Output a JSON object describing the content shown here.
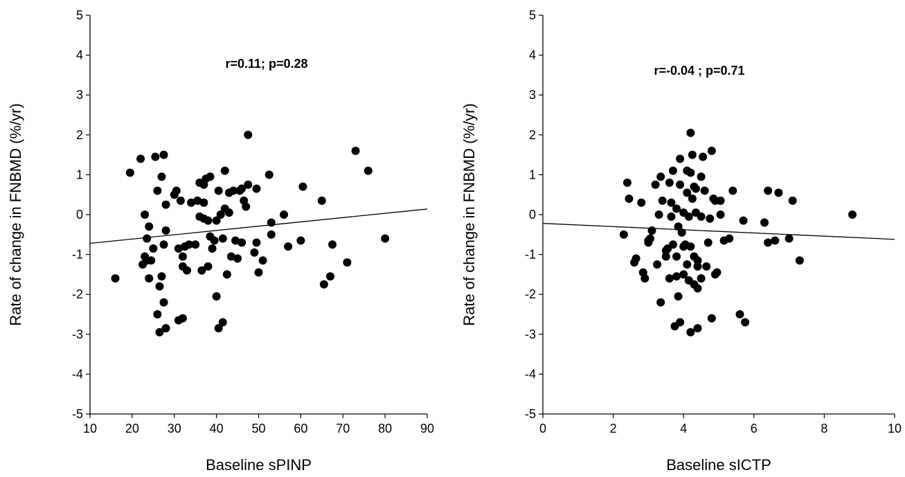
{
  "chart_data": [
    {
      "type": "scatter",
      "xlabel": "Baseline sPINP",
      "ylabel": "Rate of change in FNBMD (%/yr)",
      "annotation": "r=0.11; p=0.28",
      "xlim": [
        10,
        90
      ],
      "ylim": [
        -5,
        5
      ],
      "xticks": [
        "10",
        "20",
        "30",
        "40",
        "50",
        "60",
        "70",
        "80",
        "90"
      ],
      "yticks": [
        "-5",
        "-4",
        "-3",
        "-2",
        "-1",
        "0",
        "1",
        "2",
        "3",
        "4",
        "5"
      ],
      "regression": {
        "x": [
          10,
          90
        ],
        "y": [
          -0.72,
          0.14
        ]
      },
      "points": [
        [
          16,
          -1.6
        ],
        [
          19.5,
          1.05
        ],
        [
          22,
          1.4
        ],
        [
          22.5,
          -1.25
        ],
        [
          23,
          0
        ],
        [
          23,
          -1.05
        ],
        [
          23.5,
          -1.15
        ],
        [
          23.5,
          -0.6
        ],
        [
          24,
          -1.6
        ],
        [
          24,
          -0.3
        ],
        [
          24.5,
          -1.15
        ],
        [
          25,
          -0.85
        ],
        [
          25.5,
          1.45
        ],
        [
          26,
          0.6
        ],
        [
          26,
          -2.5
        ],
        [
          26.5,
          -1.8
        ],
        [
          26.5,
          -2.95
        ],
        [
          27,
          0.95
        ],
        [
          27,
          -1.55
        ],
        [
          27.5,
          1.5
        ],
        [
          27.5,
          -0.75
        ],
        [
          27.5,
          -2.2
        ],
        [
          28,
          -2.85
        ],
        [
          28,
          -0.4
        ],
        [
          28,
          0.25
        ],
        [
          30,
          0.5
        ],
        [
          30.5,
          0.6
        ],
        [
          31,
          -0.85
        ],
        [
          31,
          -2.65
        ],
        [
          31.5,
          0.35
        ],
        [
          32,
          -1.3
        ],
        [
          32,
          -1.05
        ],
        [
          32,
          -2.6
        ],
        [
          32.5,
          -0.8
        ],
        [
          33,
          -1.4
        ],
        [
          33.5,
          -0.75
        ],
        [
          34,
          0.3
        ],
        [
          35,
          -0.75
        ],
        [
          35.5,
          0.35
        ],
        [
          36,
          -0.05
        ],
        [
          36,
          0.8
        ],
        [
          36.5,
          -1.4
        ],
        [
          37,
          0.75
        ],
        [
          37,
          -0.1
        ],
        [
          37,
          0.3
        ],
        [
          37.5,
          0.9
        ],
        [
          38,
          -0.15
        ],
        [
          38,
          -1.3
        ],
        [
          38.5,
          0.95
        ],
        [
          38.5,
          -0.55
        ],
        [
          39,
          -0.85
        ],
        [
          39.5,
          -0.65
        ],
        [
          40,
          -0.15
        ],
        [
          40,
          -2.05
        ],
        [
          40.5,
          -2.85
        ],
        [
          40.5,
          0.6
        ],
        [
          41,
          0
        ],
        [
          41.5,
          -0.6
        ],
        [
          41.5,
          -2.7
        ],
        [
          42,
          1.1
        ],
        [
          42,
          0.15
        ],
        [
          42.5,
          -1.5
        ],
        [
          43,
          0.05
        ],
        [
          43,
          0.55
        ],
        [
          43.5,
          -1.05
        ],
        [
          44,
          0.6
        ],
        [
          44.5,
          -0.65
        ],
        [
          45,
          -1.1
        ],
        [
          45.5,
          0.6
        ],
        [
          46,
          0.65
        ],
        [
          46,
          -0.7
        ],
        [
          46.5,
          0.35
        ],
        [
          47,
          0.2
        ],
        [
          47.5,
          2.0
        ],
        [
          47.5,
          0.75
        ],
        [
          49,
          -0.95
        ],
        [
          49.5,
          0.65
        ],
        [
          49.5,
          -0.7
        ],
        [
          50,
          -1.45
        ],
        [
          51,
          -1.15
        ],
        [
          52.5,
          1.0
        ],
        [
          53,
          -0.2
        ],
        [
          53,
          -0.5
        ],
        [
          56,
          0
        ],
        [
          57,
          -0.8
        ],
        [
          60,
          -0.65
        ],
        [
          60.5,
          0.7
        ],
        [
          65,
          0.35
        ],
        [
          65.5,
          -1.75
        ],
        [
          67,
          -1.55
        ],
        [
          67.5,
          -0.75
        ],
        [
          71,
          -1.2
        ],
        [
          73,
          1.6
        ],
        [
          76,
          1.1
        ],
        [
          80,
          -0.6
        ]
      ]
    },
    {
      "type": "scatter",
      "xlabel": "Baseline sICTP",
      "ylabel": "Rate of change in FNBMD (%/yr)",
      "annotation": "r=-0.04 ; p=0.71",
      "xlim": [
        0,
        10
      ],
      "ylim": [
        -5,
        5
      ],
      "xticks": [
        "0",
        "2",
        "4",
        "6",
        "8",
        "10"
      ],
      "yticks": [
        "-5",
        "-4",
        "-3",
        "-2",
        "-1",
        "0",
        "1",
        "2",
        "3",
        "4",
        "5"
      ],
      "regression": {
        "x": [
          0,
          10
        ],
        "y": [
          -0.22,
          -0.62
        ]
      },
      "points": [
        [
          2.3,
          -0.5
        ],
        [
          2.4,
          0.8
        ],
        [
          2.45,
          0.4
        ],
        [
          2.6,
          -1.2
        ],
        [
          2.65,
          -1.1
        ],
        [
          2.8,
          0.3
        ],
        [
          2.85,
          -1.45
        ],
        [
          2.9,
          -1.6
        ],
        [
          3,
          -0.65
        ],
        [
          3,
          -0.7
        ],
        [
          3.05,
          -0.6
        ],
        [
          3.1,
          -0.4
        ],
        [
          3.2,
          0.75
        ],
        [
          3.25,
          -1.25
        ],
        [
          3.3,
          0
        ],
        [
          3.35,
          0.95
        ],
        [
          3.35,
          -2.2
        ],
        [
          3.4,
          0.35
        ],
        [
          3.5,
          -0.9
        ],
        [
          3.5,
          -1.05
        ],
        [
          3.55,
          -0.85
        ],
        [
          3.6,
          0.8
        ],
        [
          3.6,
          -1.6
        ],
        [
          3.65,
          0.3
        ],
        [
          3.65,
          -0.05
        ],
        [
          3.7,
          1.1
        ],
        [
          3.7,
          -0.75
        ],
        [
          3.75,
          -2.8
        ],
        [
          3.8,
          -1.55
        ],
        [
          3.8,
          0.15
        ],
        [
          3.8,
          -1.05
        ],
        [
          3.85,
          -0.3
        ],
        [
          3.85,
          -2.05
        ],
        [
          3.9,
          1.4
        ],
        [
          3.9,
          0.75
        ],
        [
          3.9,
          -2.7
        ],
        [
          3.95,
          -0.45
        ],
        [
          4,
          -0.8
        ],
        [
          4,
          -1.5
        ],
        [
          4,
          0.05
        ],
        [
          4.05,
          -0.75
        ],
        [
          4.1,
          1.1
        ],
        [
          4.1,
          0.55
        ],
        [
          4.1,
          -1.25
        ],
        [
          4.15,
          -0.05
        ],
        [
          4.15,
          -1.65
        ],
        [
          4.2,
          -0.8
        ],
        [
          4.2,
          -2.95
        ],
        [
          4.2,
          1.05
        ],
        [
          4.2,
          2.05
        ],
        [
          4.25,
          0.4
        ],
        [
          4.25,
          1.5
        ],
        [
          4.3,
          0.7
        ],
        [
          4.3,
          -1.05
        ],
        [
          4.3,
          -1.75
        ],
        [
          4.35,
          0.65
        ],
        [
          4.35,
          0.05
        ],
        [
          4.4,
          -1.3
        ],
        [
          4.4,
          -1.15
        ],
        [
          4.4,
          -1.85
        ],
        [
          4.4,
          -2.85
        ],
        [
          4.5,
          0.95
        ],
        [
          4.5,
          -0.05
        ],
        [
          4.5,
          -1.6
        ],
        [
          4.55,
          1.45
        ],
        [
          4.6,
          0.6
        ],
        [
          4.65,
          -1.3
        ],
        [
          4.7,
          -0.7
        ],
        [
          4.75,
          -0.1
        ],
        [
          4.8,
          1.6
        ],
        [
          4.8,
          -2.6
        ],
        [
          4.85,
          0.4
        ],
        [
          4.9,
          0.35
        ],
        [
          4.9,
          -1.5
        ],
        [
          4.95,
          -1.45
        ],
        [
          5.05,
          0.35
        ],
        [
          5.05,
          0
        ],
        [
          5.15,
          -0.65
        ],
        [
          5.3,
          -0.6
        ],
        [
          5.4,
          0.6
        ],
        [
          5.6,
          -2.5
        ],
        [
          5.7,
          -0.15
        ],
        [
          5.75,
          -2.7
        ],
        [
          6.3,
          -0.2
        ],
        [
          6.4,
          0.6
        ],
        [
          6.4,
          -0.7
        ],
        [
          6.6,
          -0.65
        ],
        [
          6.7,
          0.55
        ],
        [
          7,
          -0.6
        ],
        [
          7.1,
          0.35
        ],
        [
          7.3,
          -1.15
        ],
        [
          8.8,
          0
        ]
      ]
    }
  ]
}
